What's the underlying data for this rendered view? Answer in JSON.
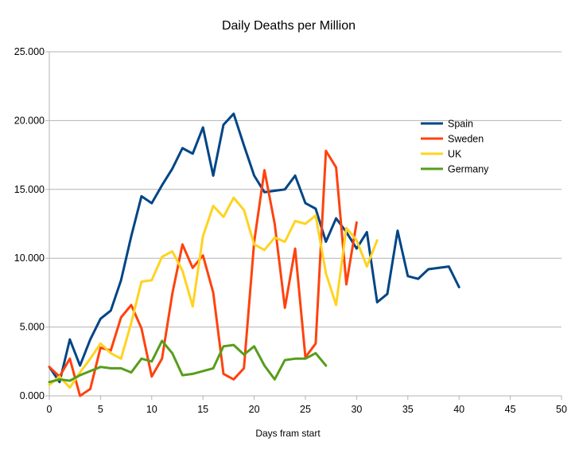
{
  "chart_data": {
    "type": "line",
    "title": "Daily Deaths per Million",
    "xlabel": "Days fram start",
    "ylabel": "",
    "xlim": [
      0,
      50
    ],
    "ylim": [
      0,
      25
    ],
    "xticks": [
      0,
      5,
      10,
      15,
      20,
      25,
      30,
      35,
      40,
      45,
      50
    ],
    "yticks": [
      0,
      5,
      10,
      15,
      20,
      25
    ],
    "ytick_labels": [
      "0.000",
      "5.000",
      "10.000",
      "15.000",
      "20.000",
      "25.000"
    ],
    "grid": "horizontal",
    "legend_position": "right",
    "series": [
      {
        "name": "Spain",
        "color": "#004586",
        "x": [
          0,
          1,
          2,
          3,
          4,
          5,
          6,
          7,
          8,
          9,
          10,
          11,
          12,
          13,
          14,
          15,
          16,
          17,
          18,
          19,
          20,
          21,
          22,
          23,
          24,
          25,
          26,
          27,
          28,
          29,
          30,
          31,
          32,
          33,
          34,
          35,
          36,
          37,
          39,
          40
        ],
        "y": [
          2.1,
          1.0,
          4.1,
          2.2,
          4.1,
          5.6,
          6.2,
          8.4,
          11.6,
          14.5,
          14.0,
          15.3,
          16.5,
          18.0,
          17.6,
          19.5,
          16.0,
          19.7,
          20.5,
          18.2,
          16.0,
          14.8,
          14.9,
          15.0,
          16.0,
          14.0,
          13.6,
          11.2,
          12.9,
          11.9,
          10.7,
          11.9,
          6.8,
          7.4,
          12.0,
          8.7,
          8.5,
          9.2,
          9.4,
          7.9
        ]
      },
      {
        "name": "Sweden",
        "color": "#ff420e",
        "x": [
          0,
          1,
          2,
          3,
          4,
          5,
          6,
          7,
          8,
          9,
          10,
          11,
          12,
          13,
          14,
          15,
          16,
          17,
          18,
          19,
          20,
          21,
          22,
          23,
          24,
          25,
          26,
          27,
          28,
          29,
          30
        ],
        "y": [
          2.1,
          1.4,
          2.7,
          0.0,
          0.5,
          3.5,
          3.3,
          5.7,
          6.6,
          4.9,
          1.4,
          2.7,
          7.4,
          11.0,
          9.3,
          10.2,
          7.5,
          1.6,
          1.2,
          2.0,
          11.2,
          16.4,
          12.5,
          6.4,
          10.7,
          2.8,
          3.8,
          17.8,
          16.6,
          8.1,
          12.6
        ]
      },
      {
        "name": "UK",
        "color": "#ffd320",
        "x": [
          0,
          1,
          2,
          3,
          4,
          5,
          6,
          7,
          8,
          9,
          10,
          11,
          12,
          13,
          14,
          15,
          16,
          17,
          18,
          19,
          20,
          21,
          22,
          23,
          24,
          25,
          26,
          27,
          28,
          29,
          30,
          31,
          32
        ],
        "y": [
          0.8,
          1.4,
          0.6,
          1.7,
          2.7,
          3.8,
          3.1,
          2.7,
          5.3,
          8.3,
          8.4,
          10.1,
          10.5,
          9.1,
          6.5,
          11.6,
          13.8,
          13.0,
          14.4,
          13.5,
          11.0,
          10.6,
          11.5,
          11.2,
          12.7,
          12.5,
          13.1,
          8.9,
          6.6,
          12.2,
          11.3,
          9.4,
          11.3
        ]
      },
      {
        "name": "Germany",
        "color": "#579d1c",
        "x": [
          0,
          1,
          2,
          3,
          4,
          5,
          6,
          7,
          8,
          9,
          10,
          11,
          12,
          13,
          14,
          15,
          16,
          17,
          18,
          19,
          20,
          21,
          22,
          23,
          24,
          25,
          26,
          27
        ],
        "y": [
          1.0,
          1.2,
          1.1,
          1.5,
          1.8,
          2.1,
          2.0,
          2.0,
          1.7,
          2.7,
          2.5,
          4.0,
          3.1,
          1.5,
          1.6,
          1.8,
          2.0,
          3.6,
          3.7,
          3.0,
          3.6,
          2.2,
          1.2,
          2.6,
          2.7,
          2.7,
          3.1,
          2.2
        ]
      }
    ]
  }
}
